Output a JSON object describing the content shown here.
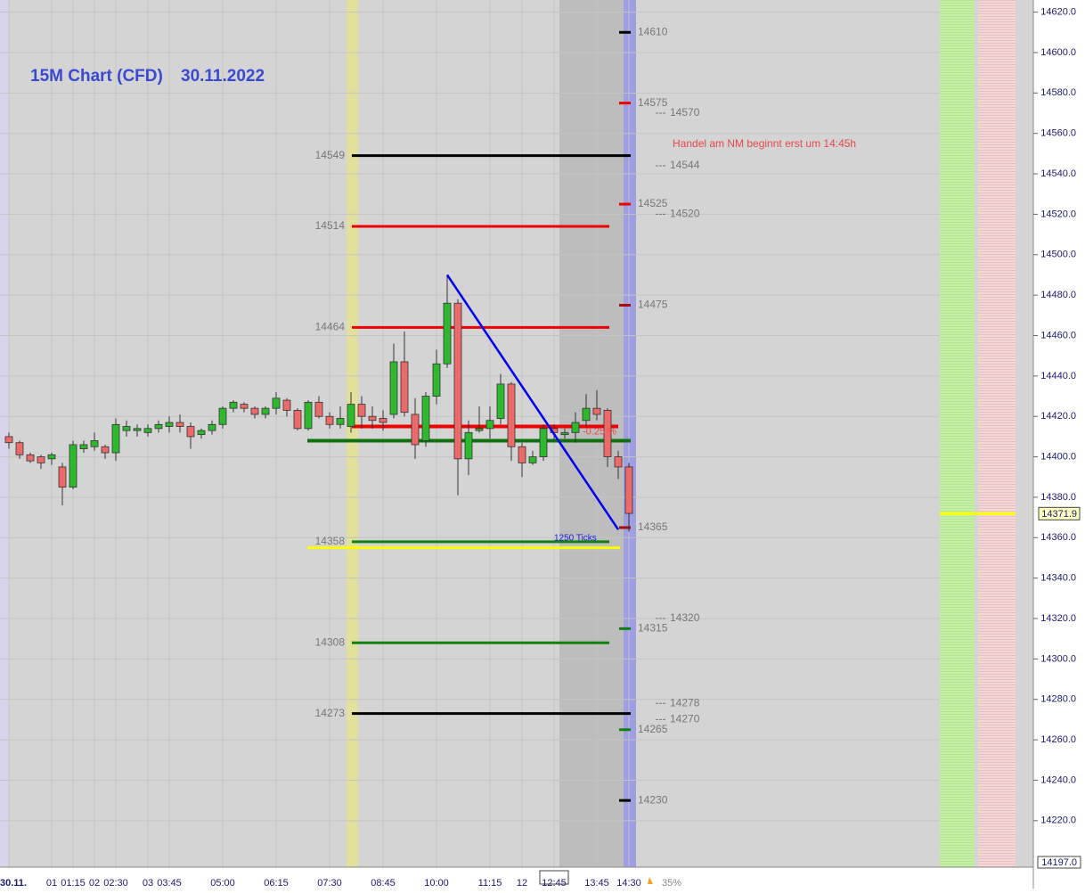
{
  "chart_data": {
    "type": "candlestick",
    "title": "15M Chart (CFD)",
    "date": "30.11.2022",
    "categories": [
      "30.11.",
      null,
      null,
      null,
      "01",
      null,
      "01:15",
      null,
      "02",
      null,
      "02:30",
      null,
      null,
      "03",
      null,
      "03:45",
      null,
      null,
      null,
      null,
      "05:00",
      null,
      null,
      null,
      null,
      "06:15",
      null,
      null,
      null,
      null,
      "07:30",
      null,
      null,
      null,
      null,
      "08:45",
      null,
      null,
      null,
      null,
      "10:00",
      null,
      null,
      null,
      null,
      "11:15",
      null,
      null,
      "12",
      null,
      null,
      "12:45",
      null,
      null,
      null,
      "13:45",
      null,
      null,
      "14:30"
    ],
    "open": [
      14410,
      14407,
      14401,
      14400,
      14399,
      14395,
      14385,
      14404,
      14405,
      14405,
      14402,
      14413,
      14413,
      14412,
      14414,
      14415,
      14417,
      14415,
      14411,
      14413,
      14416,
      14424,
      14426,
      14424,
      14421,
      14424,
      14428,
      14423,
      14414,
      14427,
      14420,
      14416,
      14415,
      14426,
      14420,
      14419,
      14421,
      14447,
      14421,
      14408,
      14430,
      14446,
      14476,
      14399,
      14413,
      14414,
      14419,
      14436,
      14405,
      14397,
      14400,
      14414,
      14411,
      14412,
      14418,
      14424,
      14423,
      14400,
      14395
    ],
    "high": [
      14412,
      14408,
      14402,
      14401,
      14402,
      14397,
      14408,
      14408,
      14412,
      14406,
      14419,
      14418,
      14416,
      14416,
      14418,
      14420,
      14421,
      14417,
      14414,
      14418,
      14425,
      14428,
      14427,
      14425,
      14425,
      14432,
      14429,
      14424,
      14428,
      14430,
      14422,
      14425,
      14432,
      14430,
      14425,
      14423,
      14456,
      14462,
      14429,
      14432,
      14453,
      14490,
      14478,
      14418,
      14425,
      14425,
      14441,
      14437,
      14407,
      14403,
      14416,
      14416,
      14414,
      14422,
      14431,
      14433,
      14424,
      14403,
      14397
    ],
    "low": [
      14404,
      14399,
      14397,
      14394,
      14396,
      14376,
      14384,
      14402,
      14403,
      14399,
      14398,
      14410,
      14410,
      14410,
      14412,
      14412,
      14412,
      14404,
      14409,
      14411,
      14414,
      14422,
      14422,
      14419,
      14419,
      14421,
      14420,
      14413,
      14413,
      14419,
      14414,
      14414,
      14412,
      14414,
      14414,
      14413,
      14419,
      14420,
      14399,
      14405,
      14426,
      14444,
      14381,
      14391,
      14412,
      14409,
      14416,
      14398,
      14390,
      14396,
      14398,
      14408,
      14409,
      14407,
      14415,
      14418,
      14395,
      14389,
      14363
    ],
    "close": [
      14407,
      14401,
      14398,
      14397,
      14401,
      14385,
      14406,
      14406,
      14408,
      14402,
      14416,
      14415,
      14414,
      14414,
      14416,
      14417,
      14415,
      14410,
      14413,
      14416,
      14424,
      14427,
      14424,
      14421,
      14424,
      14429,
      14423,
      14414,
      14427,
      14420,
      14416,
      14419,
      14426,
      14420,
      14418,
      14417,
      14447,
      14422,
      14406,
      14430,
      14446,
      14476,
      14399,
      14412,
      14414,
      14418,
      14436,
      14405,
      14397,
      14400,
      14414,
      14412,
      14412,
      14417,
      14424,
      14421,
      14400,
      14395,
      14372
    ],
    "up_color": "#2db82d",
    "down_color": "#ec6a6a",
    "ylim": [
      14197,
      14626
    ],
    "yticks": [
      {
        "value": 14620,
        "label": "14620.0"
      },
      {
        "value": 14600,
        "label": "14600.0"
      },
      {
        "value": 14580,
        "label": "14580.0"
      },
      {
        "value": 14560,
        "label": "14560.0"
      },
      {
        "value": 14540,
        "label": "14540.0"
      },
      {
        "value": 14520,
        "label": "14520.0"
      },
      {
        "value": 14500,
        "label": "14500.0"
      },
      {
        "value": 14480,
        "label": "14480.0"
      },
      {
        "value": 14460,
        "label": "14460.0"
      },
      {
        "value": 14440,
        "label": "14440.0"
      },
      {
        "value": 14420,
        "label": "14420.0"
      },
      {
        "value": 14400,
        "label": "14400.0"
      },
      {
        "value": 14380,
        "label": "14380.0"
      },
      {
        "value": 14360,
        "label": "14360.0"
      },
      {
        "value": 14340,
        "label": "14340.0"
      },
      {
        "value": 14320,
        "label": "14320.0"
      },
      {
        "value": 14300,
        "label": "14300.0"
      },
      {
        "value": 14280,
        "label": "14280.0"
      },
      {
        "value": 14260,
        "label": "14260.0"
      },
      {
        "value": 14240,
        "label": "14240.0"
      },
      {
        "value": 14220,
        "label": "14220.0"
      }
    ],
    "axis_low": {
      "value": 14197,
      "label": "14197.0"
    },
    "current_price": 14371.9,
    "grid": true,
    "levels": [
      {
        "value": 14549,
        "color": "#000000"
      },
      {
        "value": 14514,
        "color": "#ee0000"
      },
      {
        "value": 14464,
        "color": "#ee0000"
      },
      {
        "value": 14358,
        "color": "#108010"
      },
      {
        "value": 14308,
        "color": "#108010"
      },
      {
        "value": 14273,
        "color": "#000000"
      }
    ],
    "right_levels": [
      {
        "value": 14610,
        "color": "#000000"
      },
      {
        "value": 14575,
        "color": "#ee0000"
      },
      {
        "value": 14525,
        "color": "#ee0000"
      },
      {
        "value": 14475,
        "color": "#a01010"
      },
      {
        "value": 14365,
        "color": "#a01010"
      },
      {
        "value": 14315,
        "color": "#108010"
      },
      {
        "value": 14265,
        "color": "#108010"
      },
      {
        "value": 14230,
        "color": "#000000"
      }
    ],
    "pivots": [
      14570,
      14544,
      14520,
      14320,
      14278,
      14270
    ],
    "thick_lines": [
      {
        "value": 14415,
        "color": "#ee0000"
      },
      {
        "value": 14408,
        "color": "#107010"
      },
      {
        "value": 14355,
        "color": "#ffff00"
      }
    ],
    "trend": {
      "x": [
        41,
        57
      ],
      "values": [
        14490,
        14364
      ],
      "color": "#0000ee"
    },
    "change_label": "-0.25 %",
    "ticks_label": "1250 Ticks",
    "annotation": "Handel am NM beginnt erst um 14:45h",
    "zoom": "35%"
  }
}
